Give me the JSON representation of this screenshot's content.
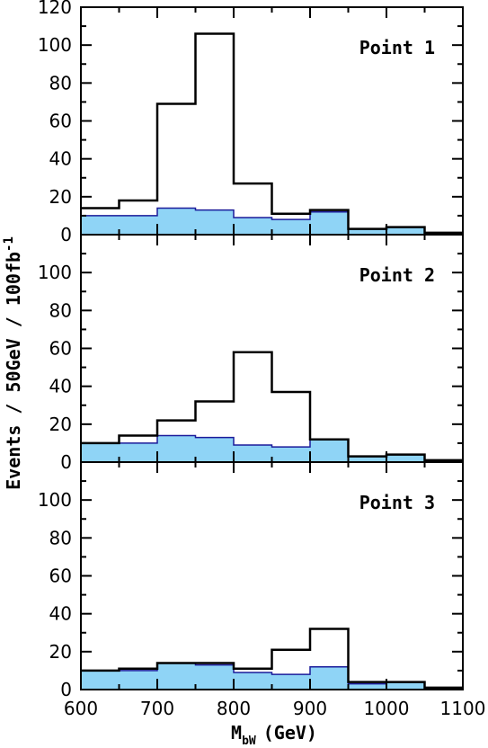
{
  "chart_data": {
    "type": "histogram",
    "ylabel": "Events / 50GeV / 100fb",
    "ylabel_sup": "-1",
    "xlabel": "M",
    "xlabel_sub": "bW",
    "xlabel_unit": "(GeV)",
    "bin_edges": [
      600,
      650,
      700,
      750,
      800,
      850,
      900,
      950,
      1000,
      1050,
      1100
    ],
    "xlim": [
      600,
      1100
    ],
    "x_ticks": [
      600,
      700,
      800,
      900,
      1000,
      1100
    ],
    "colors": {
      "total_line": "#000000",
      "background_fill": "#8fd4f6",
      "background_line": "#1b1b9a"
    },
    "panels": [
      {
        "label": "Point 1",
        "ylim": [
          0,
          120
        ],
        "y_ticks": [
          0,
          20,
          40,
          60,
          80,
          100,
          120
        ],
        "total": [
          14,
          18,
          69,
          106,
          27,
          11,
          13,
          3,
          4,
          1
        ],
        "background": [
          10,
          10,
          14,
          13,
          9,
          8,
          12,
          3,
          4,
          1
        ]
      },
      {
        "label": "Point 2",
        "ylim": [
          0,
          120
        ],
        "y_ticks": [
          0,
          20,
          40,
          60,
          80,
          100
        ],
        "total": [
          10,
          14,
          22,
          32,
          58,
          37,
          12,
          3,
          4,
          1
        ],
        "background": [
          10,
          10,
          14,
          13,
          9,
          8,
          12,
          3,
          4,
          1
        ]
      },
      {
        "label": "Point 3",
        "ylim": [
          0,
          120
        ],
        "y_ticks": [
          0,
          20,
          40,
          60,
          80,
          100
        ],
        "total": [
          10,
          11,
          14,
          14,
          11,
          21,
          32,
          4,
          4,
          1
        ],
        "background": [
          10,
          10,
          14,
          13,
          9,
          8,
          12,
          3,
          4,
          1
        ]
      }
    ]
  }
}
